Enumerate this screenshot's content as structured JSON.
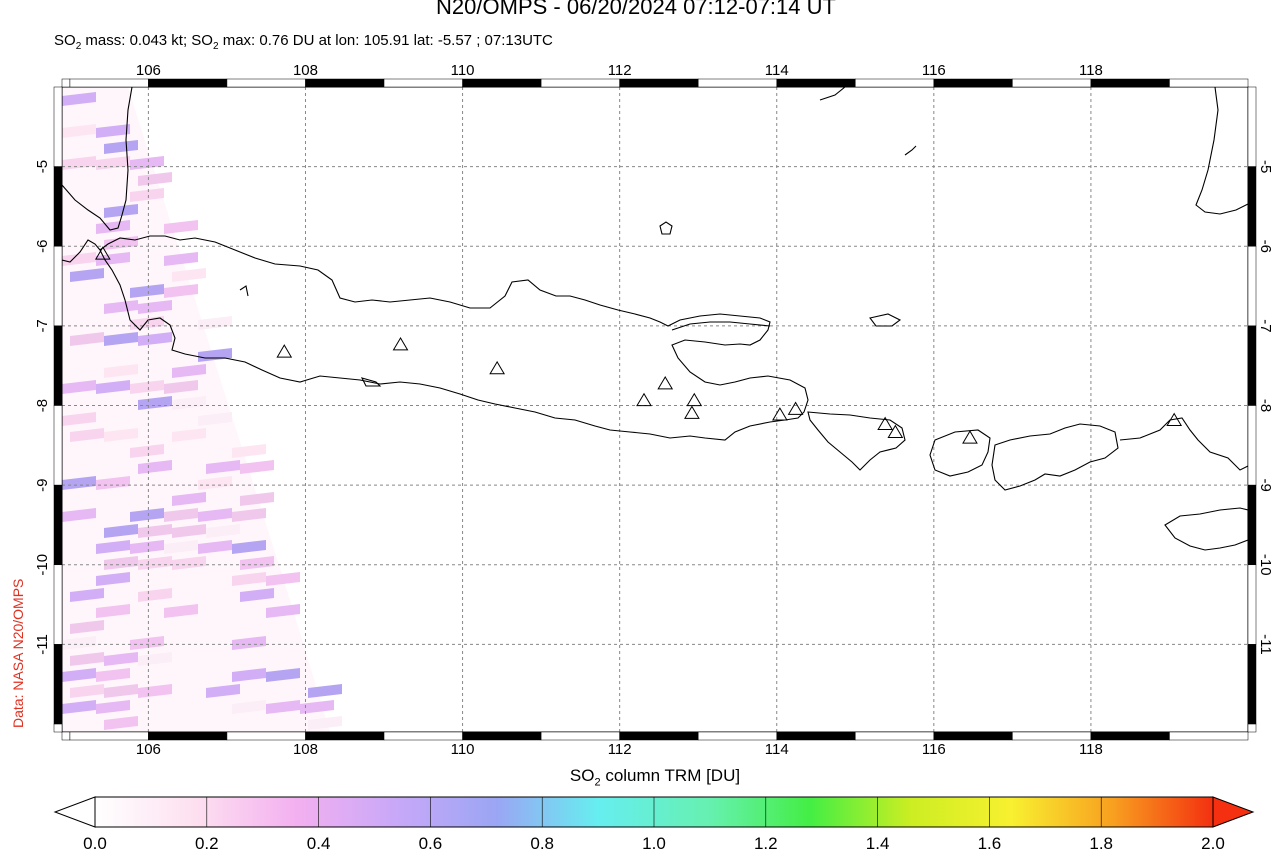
{
  "title": "N20/OMPS - 06/20/2024 07:12-07:14 UT",
  "subtitle": {
    "mass_prefix": "SO",
    "mass_sub": "2",
    "mass_text": " mass: 0.043 kt; ",
    "max_prefix": "SO",
    "max_sub": "2",
    "max_text": " max: 0.76 DU at lon: 105.91 lat: -5.57 ; 07:13UTC"
  },
  "credit": "Data: NASA N20/OMPS",
  "map": {
    "lon_range": [
      104.9,
      120.0
    ],
    "lat_range": [
      -12.1,
      -4.0
    ],
    "lon_ticks": [
      "106",
      "108",
      "110",
      "112",
      "114",
      "116",
      "118"
    ],
    "lat_ticks": [
      "-5",
      "-6",
      "-7",
      "-8",
      "-9",
      "-10",
      "-11"
    ],
    "grid": "dashed",
    "volcanoes": [
      {
        "lon": 105.42,
        "lat": -6.1
      },
      {
        "lon": 107.73,
        "lat": -7.33
      },
      {
        "lon": 109.21,
        "lat": -7.24
      },
      {
        "lon": 110.44,
        "lat": -7.54
      },
      {
        "lon": 112.31,
        "lat": -7.94
      },
      {
        "lon": 112.58,
        "lat": -7.73
      },
      {
        "lon": 112.95,
        "lat": -7.94
      },
      {
        "lon": 112.92,
        "lat": -8.1
      },
      {
        "lon": 114.04,
        "lat": -8.12
      },
      {
        "lon": 114.24,
        "lat": -8.05
      },
      {
        "lon": 115.38,
        "lat": -8.24
      },
      {
        "lon": 115.51,
        "lat": -8.34
      },
      {
        "lon": 116.46,
        "lat": -8.41
      },
      {
        "lon": 119.06,
        "lat": -8.19
      }
    ]
  },
  "colorbar": {
    "label_prefix": "SO",
    "label_sub": "2",
    "label_text": " column TRM [DU]",
    "ticks": [
      "0.0",
      "0.2",
      "0.4",
      "0.6",
      "0.8",
      "1.0",
      "1.2",
      "1.4",
      "1.6",
      "1.8",
      "2.0"
    ],
    "range": [
      0.0,
      2.0
    ],
    "colors": [
      "#ffffff",
      "#fde0f0",
      "#f3b0f0",
      "#c8a8f8",
      "#9aa6f4",
      "#66eef0",
      "#66f0b0",
      "#44ee44",
      "#ccee22",
      "#f8f030",
      "#f8a020",
      "#f43010"
    ]
  }
}
